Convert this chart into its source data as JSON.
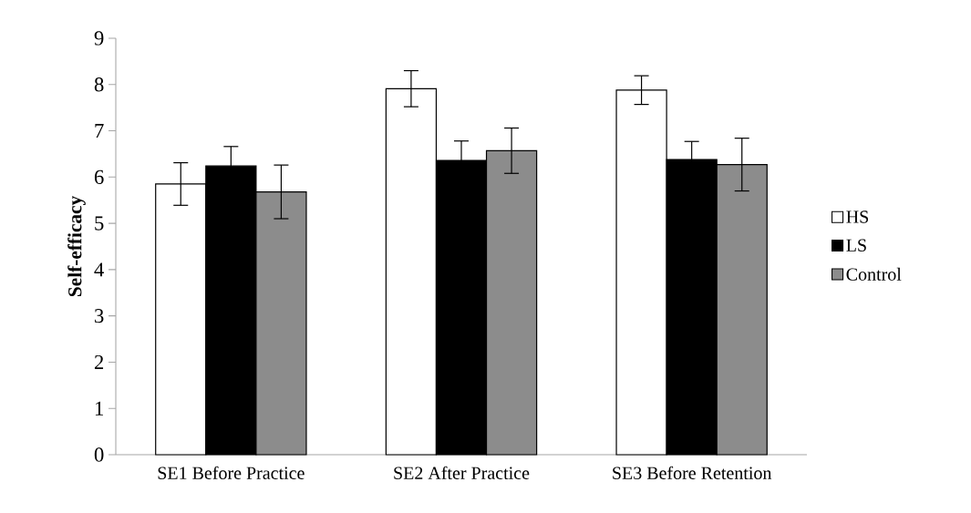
{
  "chart_data": {
    "type": "bar",
    "ylabel": "Self-efficacy",
    "categories": [
      "SE1 Before Practice",
      "SE2 After Practice",
      "SE3 Before Retention"
    ],
    "series": [
      {
        "name": "HS",
        "color": "#ffffff",
        "values": [
          5.85,
          7.91,
          7.88
        ],
        "errors": [
          0.46,
          0.39,
          0.31
        ]
      },
      {
        "name": "LS",
        "color": "#000000",
        "values": [
          6.24,
          6.36,
          6.38
        ],
        "errors": [
          0.42,
          0.42,
          0.39
        ]
      },
      {
        "name": "Control",
        "color": "#8c8c8c",
        "values": [
          5.68,
          6.57,
          6.27
        ],
        "errors": [
          0.58,
          0.49,
          0.57
        ]
      }
    ],
    "ylim": [
      0,
      9
    ],
    "yticks": [
      0,
      1,
      2,
      3,
      4,
      5,
      6,
      7,
      8,
      9
    ],
    "grid": false,
    "legend": "right"
  }
}
